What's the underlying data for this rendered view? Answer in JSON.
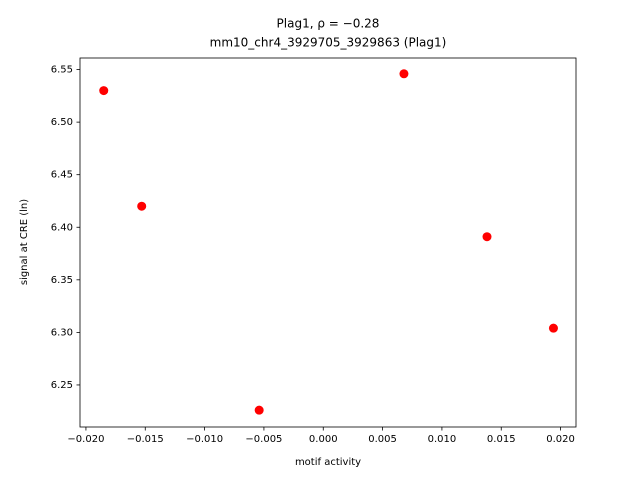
{
  "chart_data": {
    "type": "scatter",
    "title": "Plag1, ρ = −0.28",
    "subtitle": "mm10_chr4_3929705_3929863 (Plag1)",
    "x_label": "motif activity",
    "y_label": "signal at CRE (ln)",
    "series": [
      {
        "color": "#ff0000",
        "x": [
          -0.0185,
          -0.0153,
          -0.0054,
          0.0068,
          0.0138,
          0.0194
        ],
        "values": [
          6.53,
          6.42,
          6.226,
          6.546,
          6.391,
          6.304
        ]
      }
    ],
    "xlim": [
      -0.0205,
      0.0213
    ],
    "ylim": [
      6.21,
      6.561
    ],
    "xticks": [
      {
        "value": -0.02,
        "label": "−0.020"
      },
      {
        "value": -0.015,
        "label": "−0.015"
      },
      {
        "value": -0.01,
        "label": "−0.010"
      },
      {
        "value": -0.005,
        "label": "−0.005"
      },
      {
        "value": 0,
        "label": "0.000"
      },
      0.005,
      {
        "value": 0.01,
        "label": "0.010"
      },
      0.015,
      {
        "value": 0.02,
        "label": "0.020"
      }
    ],
    "yticks": [
      6.25,
      {
        "value": 6.3,
        "label": "6.30"
      },
      6.35,
      {
        "value": 6.4,
        "label": "6.40"
      },
      6.45,
      {
        "value": 6.5,
        "label": "6.50"
      },
      6.55
    ],
    "grid": false
  }
}
